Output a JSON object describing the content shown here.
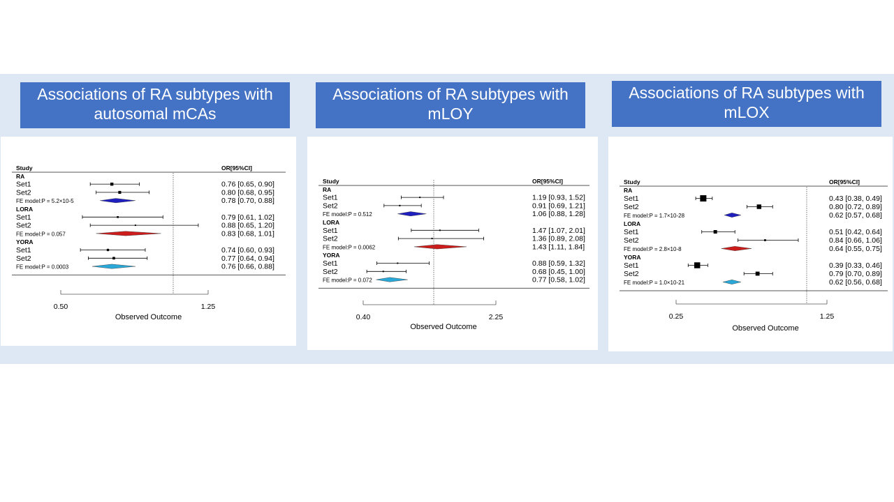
{
  "chart_data": [
    {
      "type": "forest",
      "title": "Associations of RA subtypes with autosomal mCAs",
      "header_left": "Study",
      "header_right": "OR[95%CI]",
      "xlabel": "Observed Outcome",
      "x_ticks": [
        "0.50",
        "1.25"
      ],
      "groups": [
        {
          "label": "RA",
          "color": "#1f1fbf",
          "rows": [
            {
              "label": "Set1",
              "or": 0.76,
              "lo": 0.65,
              "hi": 0.9,
              "text": "0.76 [0.65, 0.90]"
            },
            {
              "label": "Set2",
              "or": 0.8,
              "lo": 0.68,
              "hi": 0.95,
              "text": "0.80 [0.68, 0.95]"
            }
          ],
          "summary": {
            "label": "FE model:P = 5.2×10-5",
            "or": 0.78,
            "lo": 0.7,
            "hi": 0.88,
            "text": "0.78 [0.70, 0.88]"
          }
        },
        {
          "label": "LORA",
          "color": "#cc1c1c",
          "rows": [
            {
              "label": "Set1",
              "or": 0.79,
              "lo": 0.61,
              "hi": 1.02,
              "text": "0.79 [0.61, 1.02]"
            },
            {
              "label": "Set2",
              "or": 0.88,
              "lo": 0.65,
              "hi": 1.2,
              "text": "0.88 [0.65, 1.20]"
            }
          ],
          "summary": {
            "label": "FE model:P = 0.057",
            "or": 0.83,
            "lo": 0.68,
            "hi": 1.01,
            "text": "0.83 [0.68, 1.01]"
          }
        },
        {
          "label": "YORA",
          "color": "#2aa8d8",
          "rows": [
            {
              "label": "Set1",
              "or": 0.74,
              "lo": 0.6,
              "hi": 0.93,
              "text": "0.74 [0.60, 0.93]"
            },
            {
              "label": "Set2",
              "or": 0.77,
              "lo": 0.64,
              "hi": 0.94,
              "text": "0.77 [0.64, 0.94]"
            }
          ],
          "summary": {
            "label": "FE model:P = 0.0003",
            "or": 0.76,
            "lo": 0.66,
            "hi": 0.88,
            "text": "0.76 [0.66, 0.88]"
          }
        }
      ]
    },
    {
      "type": "forest",
      "title": "Associations of RA subtypes with mLOY",
      "header_left": "Study",
      "header_right": "OR[95%CI]",
      "xlabel": "Observed Outcome",
      "x_ticks": [
        "0.40",
        "2.25"
      ],
      "groups": [
        {
          "label": "RA",
          "color": "#1f1fbf",
          "rows": [
            {
              "label": "Set1",
              "or": 1.19,
              "lo": 0.93,
              "hi": 1.52,
              "text": "1.19 [0.93, 1.52]"
            },
            {
              "label": "Set2",
              "or": 0.91,
              "lo": 0.69,
              "hi": 1.21,
              "text": "0.91 [0.69, 1.21]"
            }
          ],
          "summary": {
            "label": "FE model:P = 0.512",
            "or": 1.06,
            "lo": 0.88,
            "hi": 1.28,
            "text": "1.06 [0.88, 1.28]"
          }
        },
        {
          "label": "LORA",
          "color": "#cc1c1c",
          "rows": [
            {
              "label": "Set1",
              "or": 1.47,
              "lo": 1.07,
              "hi": 2.01,
              "text": "1.47 [1.07, 2.01]"
            },
            {
              "label": "Set2",
              "or": 1.36,
              "lo": 0.89,
              "hi": 2.08,
              "text": "1.36 [0.89, 2.08]"
            }
          ],
          "summary": {
            "label": "FE model:P = 0.0062",
            "or": 1.43,
            "lo": 1.11,
            "hi": 1.84,
            "text": "1.43 [1.11, 1.84]"
          }
        },
        {
          "label": "YORA",
          "color": "#2aa8d8",
          "rows": [
            {
              "label": "Set1",
              "or": 0.88,
              "lo": 0.59,
              "hi": 1.32,
              "text": "0.88 [0.59, 1.32]"
            },
            {
              "label": "Set2",
              "or": 0.68,
              "lo": 0.45,
              "hi": 1.0,
              "text": "0.68 [0.45, 1.00]"
            }
          ],
          "summary": {
            "label": "FE model:P = 0.072",
            "or": 0.77,
            "lo": 0.58,
            "hi": 1.02,
            "text": "0.77 [0.58, 1.02]"
          }
        }
      ]
    },
    {
      "type": "forest",
      "title": "Associations of RA subtypes with mLOX",
      "header_left": "Study",
      "header_right": "OR[95%CI]",
      "xlabel": "Observed Outcome",
      "x_ticks": [
        "0.25",
        "1.25"
      ],
      "groups": [
        {
          "label": "RA",
          "color": "#1f1fbf",
          "rows": [
            {
              "label": "Set1",
              "or": 0.43,
              "lo": 0.38,
              "hi": 0.49,
              "text": "0.43 [0.38, 0.49]"
            },
            {
              "label": "Set2",
              "or": 0.8,
              "lo": 0.72,
              "hi": 0.89,
              "text": "0.80 [0.72, 0.89]"
            }
          ],
          "summary": {
            "label": "FE model:P = 1.7×10-28",
            "or": 0.62,
            "lo": 0.57,
            "hi": 0.68,
            "text": "0.62 [0.57, 0.68]"
          }
        },
        {
          "label": "LORA",
          "color": "#cc1c1c",
          "rows": [
            {
              "label": "Set1",
              "or": 0.51,
              "lo": 0.42,
              "hi": 0.64,
              "text": "0.51 [0.42, 0.64]"
            },
            {
              "label": "Set2",
              "or": 0.84,
              "lo": 0.66,
              "hi": 1.06,
              "text": "0.84 [0.66, 1.06]"
            }
          ],
          "summary": {
            "label": "FE model:P = 2.8×10-8",
            "or": 0.64,
            "lo": 0.55,
            "hi": 0.75,
            "text": "0.64 [0.55, 0.75]"
          }
        },
        {
          "label": "YORA",
          "color": "#2aa8d8",
          "rows": [
            {
              "label": "Set1",
              "or": 0.39,
              "lo": 0.33,
              "hi": 0.46,
              "text": "0.39 [0.33, 0.46]"
            },
            {
              "label": "Set2",
              "or": 0.79,
              "lo": 0.7,
              "hi": 0.89,
              "text": "0.79 [0.70, 0.89]"
            }
          ],
          "summary": {
            "label": "FE model:P = 1.0×10-21",
            "or": 0.62,
            "lo": 0.56,
            "hi": 0.68,
            "text": "0.62 [0.56, 0.68]"
          }
        }
      ]
    }
  ]
}
